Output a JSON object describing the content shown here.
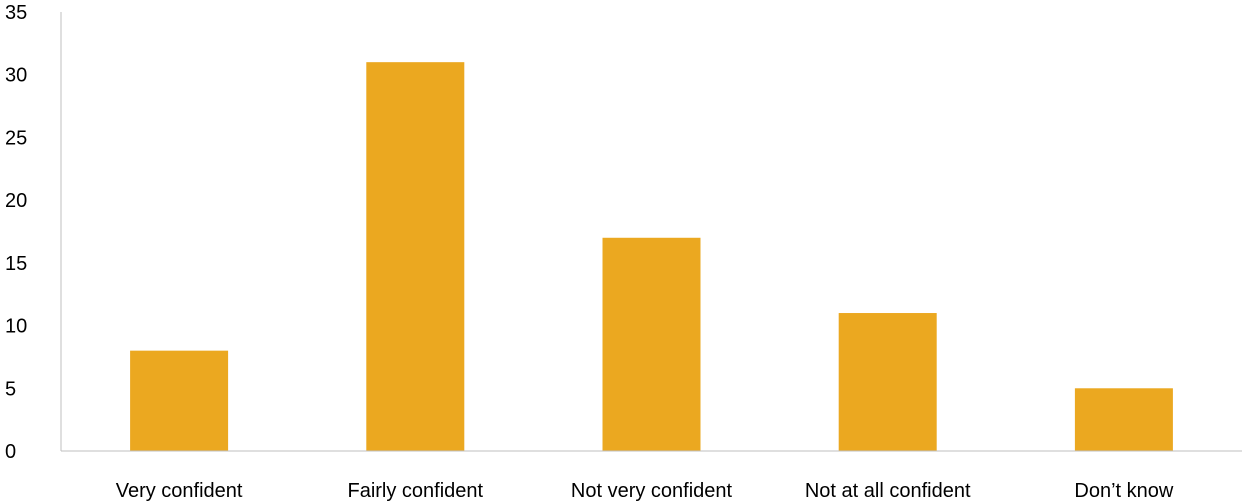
{
  "chart_data": {
    "type": "bar",
    "categories": [
      "Very confident",
      "Fairly confident",
      "Not very confident",
      "Not at all confident",
      "Don’t know"
    ],
    "values": [
      8,
      31,
      17,
      11,
      5
    ],
    "title": "",
    "xlabel": "",
    "ylabel": "",
    "ylim": [
      0,
      35
    ],
    "yticks": [
      0,
      5,
      10,
      15,
      20,
      25,
      30,
      35
    ],
    "grid": false,
    "legend": "none",
    "bar_color": "#eba820",
    "axis_color": "#bfbfbf"
  }
}
